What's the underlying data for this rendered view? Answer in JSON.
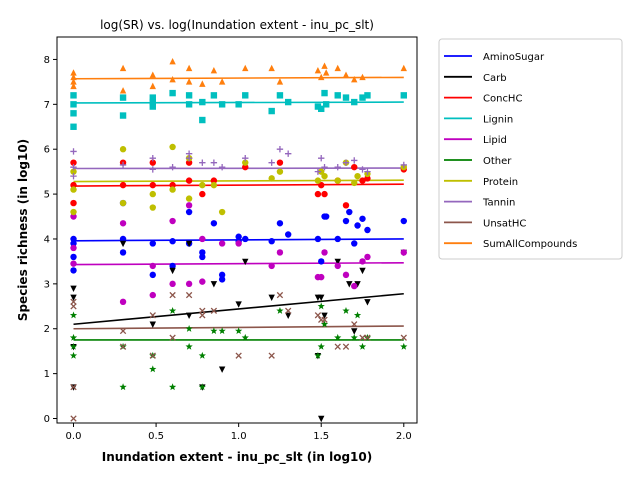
{
  "chart_data": {
    "type": "scatter",
    "title": "log(SR) vs. log(Inundation extent - inu_pc_slt)",
    "xlabel": "Inundation extent - inu_pc_slt (in log10)",
    "ylabel": "Species richness (in log10)",
    "xlim": [
      -0.1,
      2.08
    ],
    "ylim": [
      -0.1,
      8.5
    ],
    "xticks": [
      "0.0",
      "0.5",
      "1.0",
      "1.5",
      "2.0"
    ],
    "yticks": [
      "0",
      "1",
      "2",
      "3",
      "4",
      "5",
      "6",
      "7",
      "8"
    ],
    "x_tick_values": [
      0.0,
      0.5,
      1.0,
      1.5,
      2.0
    ],
    "y_tick_values": [
      0,
      1,
      2,
      3,
      4,
      5,
      6,
      7,
      8
    ],
    "legend_position": "outside-right",
    "series": [
      {
        "name": "AminoSugar",
        "color": "#0000ff",
        "marker": "circle",
        "fit": [
          3.96,
          4.0
        ],
        "points": [
          [
            0,
            3.6
          ],
          [
            0,
            3.9
          ],
          [
            0,
            3.3
          ],
          [
            0,
            4.0
          ],
          [
            0.3,
            4.0
          ],
          [
            0.3,
            3.7
          ],
          [
            0.3,
            4.8
          ],
          [
            0.48,
            3.9
          ],
          [
            0.48,
            3.2
          ],
          [
            0.6,
            3.95
          ],
          [
            0.6,
            3.4
          ],
          [
            0.7,
            4.6
          ],
          [
            0.7,
            3.9
          ],
          [
            0.78,
            3.7
          ],
          [
            0.78,
            3.6
          ],
          [
            0.85,
            4.35
          ],
          [
            0.9,
            3.2
          ],
          [
            0.9,
            3.1
          ],
          [
            1.0,
            4.05
          ],
          [
            1.0,
            3.95
          ],
          [
            1.04,
            4.0
          ],
          [
            1.2,
            3.95
          ],
          [
            1.25,
            4.35
          ],
          [
            1.3,
            4.1
          ],
          [
            1.48,
            4.0
          ],
          [
            1.5,
            3.5
          ],
          [
            1.52,
            4.5
          ],
          [
            1.53,
            4.5
          ],
          [
            1.6,
            4.0
          ],
          [
            1.65,
            4.4
          ],
          [
            1.67,
            4.6
          ],
          [
            1.7,
            3.9
          ],
          [
            1.72,
            4.3
          ],
          [
            1.75,
            4.45
          ],
          [
            1.78,
            4.2
          ],
          [
            2.0,
            4.4
          ]
        ]
      },
      {
        "name": "Carb",
        "color": "#000000",
        "marker": "triangle-down",
        "fit": [
          2.1,
          2.78
        ],
        "points": [
          [
            0,
            2.9
          ],
          [
            0,
            2.7
          ],
          [
            0,
            1.6
          ],
          [
            0,
            0.7
          ],
          [
            0.3,
            3.9
          ],
          [
            0.48,
            2.1
          ],
          [
            0.6,
            3.3
          ],
          [
            0.7,
            2.3
          ],
          [
            0.7,
            3.9
          ],
          [
            0.78,
            0.7
          ],
          [
            0.85,
            3.0
          ],
          [
            0.9,
            1.1
          ],
          [
            1.0,
            2.55
          ],
          [
            1.04,
            3.5
          ],
          [
            1.2,
            2.7
          ],
          [
            1.3,
            2.3
          ],
          [
            1.48,
            1.4
          ],
          [
            1.48,
            2.7
          ],
          [
            1.5,
            2.7
          ],
          [
            1.5,
            0.0
          ],
          [
            1.52,
            2.3
          ],
          [
            1.6,
            3.5
          ],
          [
            1.67,
            3.0
          ],
          [
            1.7,
            1.95
          ],
          [
            1.72,
            3.0
          ],
          [
            1.75,
            3.3
          ],
          [
            1.78,
            2.6
          ],
          [
            2.0,
            3.7
          ]
        ]
      },
      {
        "name": "ConcHC",
        "color": "#ff0000",
        "marker": "circle",
        "fit": [
          5.18,
          5.22
        ],
        "points": [
          [
            0,
            5.7
          ],
          [
            0,
            5.2
          ],
          [
            0,
            4.8
          ],
          [
            0.3,
            5.7
          ],
          [
            0.3,
            5.2
          ],
          [
            0.48,
            5.7
          ],
          [
            0.48,
            5.2
          ],
          [
            0.6,
            5.2
          ],
          [
            0.7,
            5.7
          ],
          [
            0.7,
            5.3
          ],
          [
            0.78,
            5.0
          ],
          [
            0.85,
            5.3
          ],
          [
            1.04,
            5.6
          ],
          [
            1.25,
            5.7
          ],
          [
            1.48,
            5.0
          ],
          [
            1.5,
            5.2
          ],
          [
            1.52,
            5.0
          ],
          [
            1.6,
            5.3
          ],
          [
            1.65,
            4.75
          ],
          [
            1.7,
            5.6
          ],
          [
            1.75,
            5.3
          ],
          [
            1.78,
            5.35
          ],
          [
            2.0,
            5.55
          ]
        ]
      },
      {
        "name": "Lignin",
        "color": "#00bfbf",
        "marker": "square",
        "fit": [
          7.03,
          7.05
        ],
        "points": [
          [
            0,
            7.2
          ],
          [
            0,
            7.0
          ],
          [
            0,
            6.8
          ],
          [
            0,
            6.5
          ],
          [
            0.3,
            7.15
          ],
          [
            0.3,
            6.75
          ],
          [
            0.48,
            7.15
          ],
          [
            0.48,
            6.95
          ],
          [
            0.48,
            7.05
          ],
          [
            0.6,
            7.25
          ],
          [
            0.7,
            7.0
          ],
          [
            0.7,
            7.2
          ],
          [
            0.78,
            6.65
          ],
          [
            0.78,
            7.05
          ],
          [
            0.85,
            7.2
          ],
          [
            0.9,
            7.0
          ],
          [
            1.0,
            7.0
          ],
          [
            1.04,
            7.2
          ],
          [
            1.2,
            6.85
          ],
          [
            1.25,
            7.2
          ],
          [
            1.3,
            7.05
          ],
          [
            1.48,
            6.95
          ],
          [
            1.5,
            6.9
          ],
          [
            1.52,
            7.25
          ],
          [
            1.53,
            7.0
          ],
          [
            1.6,
            7.2
          ],
          [
            1.65,
            7.15
          ],
          [
            1.7,
            7.05
          ],
          [
            1.75,
            7.15
          ],
          [
            1.78,
            7.2
          ],
          [
            2.0,
            7.2
          ]
        ]
      },
      {
        "name": "Lipid",
        "color": "#bf00bf",
        "marker": "circle",
        "fit": [
          3.43,
          3.47
        ],
        "points": [
          [
            0,
            3.45
          ],
          [
            0,
            3.8
          ],
          [
            0,
            4.5
          ],
          [
            0.3,
            2.6
          ],
          [
            0.3,
            4.35
          ],
          [
            0.48,
            3.4
          ],
          [
            0.48,
            2.75
          ],
          [
            0.6,
            4.4
          ],
          [
            0.6,
            3.0
          ],
          [
            0.7,
            3.0
          ],
          [
            0.7,
            4.75
          ],
          [
            0.78,
            4.0
          ],
          [
            0.78,
            3.05
          ],
          [
            0.9,
            3.9
          ],
          [
            1.0,
            3.9
          ],
          [
            1.2,
            3.4
          ],
          [
            1.25,
            3.7
          ],
          [
            1.48,
            3.15
          ],
          [
            1.5,
            3.15
          ],
          [
            1.52,
            3.7
          ],
          [
            1.6,
            3.4
          ],
          [
            1.65,
            3.2
          ],
          [
            1.7,
            2.95
          ],
          [
            1.75,
            3.5
          ],
          [
            1.78,
            3.6
          ],
          [
            2.0,
            3.7
          ]
        ]
      },
      {
        "name": "Other",
        "color": "#008000",
        "marker": "star",
        "fit": [
          1.75,
          1.75
        ],
        "points": [
          [
            0,
            1.6
          ],
          [
            0,
            1.4
          ],
          [
            0,
            1.8
          ],
          [
            0,
            2.3
          ],
          [
            0.3,
            0.7
          ],
          [
            0.3,
            1.6
          ],
          [
            0.48,
            1.1
          ],
          [
            0.48,
            1.4
          ],
          [
            0.6,
            0.7
          ],
          [
            0.6,
            2.4
          ],
          [
            0.7,
            1.6
          ],
          [
            0.7,
            2.0
          ],
          [
            0.78,
            0.7
          ],
          [
            0.78,
            1.4
          ],
          [
            0.85,
            1.95
          ],
          [
            0.9,
            1.95
          ],
          [
            1.0,
            1.95
          ],
          [
            1.04,
            1.8
          ],
          [
            1.25,
            2.4
          ],
          [
            1.48,
            1.4
          ],
          [
            1.5,
            1.6
          ],
          [
            1.5,
            2.5
          ],
          [
            1.52,
            2.1
          ],
          [
            1.6,
            1.8
          ],
          [
            1.65,
            2.4
          ],
          [
            1.7,
            1.8
          ],
          [
            1.72,
            2.3
          ],
          [
            1.75,
            1.6
          ],
          [
            1.78,
            1.8
          ],
          [
            2.0,
            1.6
          ]
        ]
      },
      {
        "name": "Protein",
        "color": "#bfbf00",
        "marker": "circle",
        "fit": [
          5.28,
          5.31
        ],
        "points": [
          [
            0,
            4.6
          ],
          [
            0,
            5.1
          ],
          [
            0,
            5.5
          ],
          [
            0.3,
            4.8
          ],
          [
            0.3,
            6.0
          ],
          [
            0.48,
            5.0
          ],
          [
            0.48,
            4.7
          ],
          [
            0.6,
            6.05
          ],
          [
            0.6,
            5.1
          ],
          [
            0.7,
            4.9
          ],
          [
            0.7,
            5.8
          ],
          [
            0.78,
            5.2
          ],
          [
            0.85,
            5.2
          ],
          [
            0.9,
            4.6
          ],
          [
            1.04,
            5.7
          ],
          [
            1.2,
            5.35
          ],
          [
            1.25,
            5.5
          ],
          [
            1.48,
            5.3
          ],
          [
            1.5,
            5.5
          ],
          [
            1.52,
            5.4
          ],
          [
            1.6,
            5.3
          ],
          [
            1.65,
            5.7
          ],
          [
            1.7,
            5.25
          ],
          [
            1.72,
            5.4
          ],
          [
            1.78,
            5.45
          ],
          [
            2.0,
            5.6
          ]
        ]
      },
      {
        "name": "Tannin",
        "color": "#9467bd",
        "marker": "plus",
        "fit": [
          5.57,
          5.58
        ],
        "points": [
          [
            0,
            5.95
          ],
          [
            0,
            5.6
          ],
          [
            0,
            5.4
          ],
          [
            0.3,
            5.65
          ],
          [
            0.48,
            5.8
          ],
          [
            0.48,
            5.55
          ],
          [
            0.6,
            5.6
          ],
          [
            0.7,
            5.9
          ],
          [
            0.7,
            5.8
          ],
          [
            0.78,
            5.7
          ],
          [
            0.85,
            5.7
          ],
          [
            0.9,
            5.6
          ],
          [
            1.04,
            5.8
          ],
          [
            1.2,
            5.7
          ],
          [
            1.25,
            6.0
          ],
          [
            1.3,
            5.9
          ],
          [
            1.48,
            5.5
          ],
          [
            1.5,
            5.8
          ],
          [
            1.52,
            5.6
          ],
          [
            1.6,
            5.6
          ],
          [
            1.65,
            5.7
          ],
          [
            1.7,
            5.75
          ],
          [
            1.75,
            5.55
          ],
          [
            1.78,
            5.5
          ],
          [
            2.0,
            5.65
          ]
        ]
      },
      {
        "name": "UnsatHC",
        "color": "#8c564b",
        "marker": "x",
        "fit": [
          2.0,
          2.06
        ],
        "points": [
          [
            0,
            2.6
          ],
          [
            0,
            2.5
          ],
          [
            0,
            0.7
          ],
          [
            0,
            0.0
          ],
          [
            0.3,
            1.95
          ],
          [
            0.3,
            1.6
          ],
          [
            0.48,
            2.3
          ],
          [
            0.48,
            1.4
          ],
          [
            0.6,
            2.75
          ],
          [
            0.6,
            1.8
          ],
          [
            0.7,
            2.75
          ],
          [
            0.78,
            2.4
          ],
          [
            0.78,
            2.3
          ],
          [
            0.85,
            2.4
          ],
          [
            1.0,
            1.4
          ],
          [
            1.2,
            1.4
          ],
          [
            1.25,
            2.75
          ],
          [
            1.3,
            2.4
          ],
          [
            1.48,
            2.3
          ],
          [
            1.5,
            2.2
          ],
          [
            1.52,
            2.2
          ],
          [
            1.6,
            1.6
          ],
          [
            1.65,
            1.6
          ],
          [
            1.7,
            2.1
          ],
          [
            1.75,
            1.8
          ],
          [
            1.78,
            1.8
          ],
          [
            2.0,
            1.8
          ]
        ]
      },
      {
        "name": "SumAllCompounds",
        "color": "#ff7f0e",
        "marker": "triangle-up",
        "fit": [
          7.57,
          7.6
        ],
        "points": [
          [
            0,
            7.7
          ],
          [
            0,
            7.6
          ],
          [
            0,
            7.5
          ],
          [
            0,
            7.4
          ],
          [
            0.3,
            7.8
          ],
          [
            0.3,
            7.3
          ],
          [
            0.48,
            7.65
          ],
          [
            0.48,
            7.4
          ],
          [
            0.6,
            7.95
          ],
          [
            0.6,
            7.55
          ],
          [
            0.7,
            7.8
          ],
          [
            0.7,
            7.5
          ],
          [
            0.78,
            7.45
          ],
          [
            0.85,
            7.75
          ],
          [
            0.9,
            7.5
          ],
          [
            1.04,
            7.8
          ],
          [
            1.2,
            7.8
          ],
          [
            1.25,
            7.5
          ],
          [
            1.48,
            7.75
          ],
          [
            1.5,
            7.6
          ],
          [
            1.52,
            7.85
          ],
          [
            1.53,
            7.7
          ],
          [
            1.6,
            7.8
          ],
          [
            1.65,
            7.65
          ],
          [
            1.7,
            7.55
          ],
          [
            1.75,
            7.6
          ],
          [
            2.0,
            7.8
          ]
        ]
      }
    ]
  }
}
